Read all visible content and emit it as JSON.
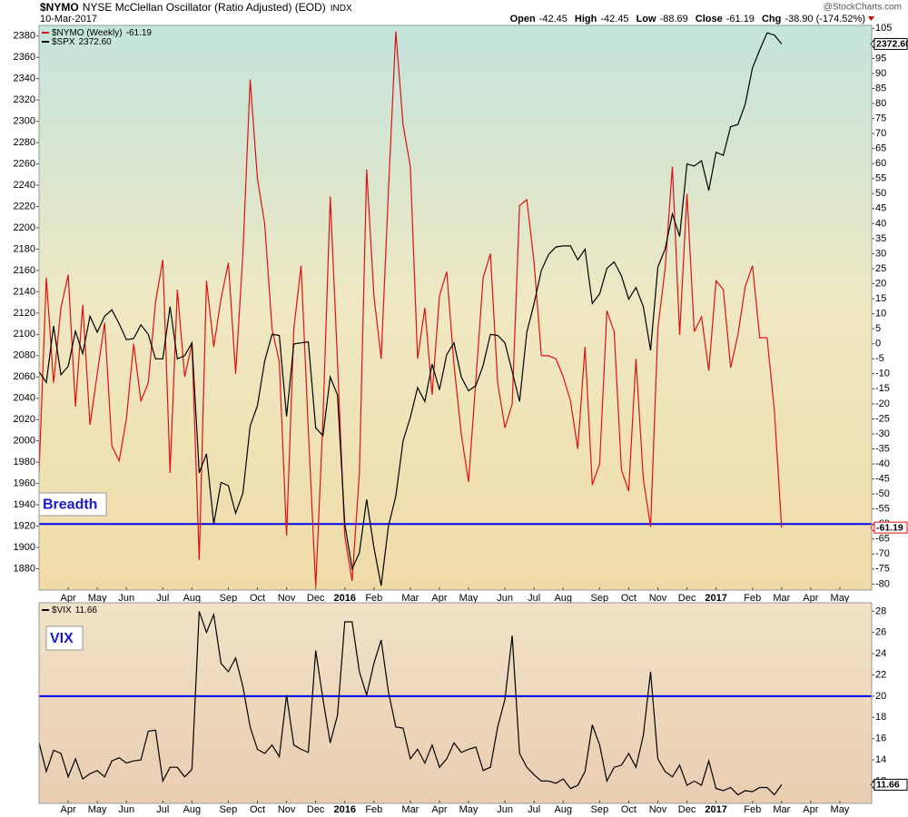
{
  "header": {
    "symbol": "$NYMO",
    "name": "NYSE McClellan Oscillator (Ratio Adjusted) (EOD)",
    "exchange": "INDX",
    "date": "10-Mar-2017",
    "source": "@StockCharts.com",
    "quote": [
      {
        "label": "Open",
        "value": "-42.45"
      },
      {
        "label": "High",
        "value": "-42.45"
      },
      {
        "label": "Low",
        "value": "-88.69"
      },
      {
        "label": "Close",
        "value": "-61.19"
      },
      {
        "label": "Chg",
        "value": "-38.90 (-174.52%)"
      }
    ]
  },
  "chart_data": [
    {
      "type": "line",
      "categories": [
        null,
        null,
        null,
        null,
        "Apr",
        null,
        null,
        null,
        "May",
        null,
        null,
        null,
        "Jun",
        null,
        null,
        null,
        null,
        "Jul",
        null,
        null,
        null,
        "Aug",
        null,
        null,
        null,
        null,
        "Sep",
        null,
        null,
        null,
        "Oct",
        null,
        null,
        null,
        "Nov",
        null,
        null,
        null,
        "Dec",
        null,
        null,
        null,
        "2016",
        null,
        null,
        null,
        "Feb",
        null,
        null,
        null,
        null,
        "Mar",
        null,
        null,
        null,
        "Apr",
        null,
        null,
        null,
        "May",
        null,
        null,
        null,
        null,
        "Jun",
        null,
        null,
        null,
        "Jul",
        null,
        null,
        null,
        "Aug",
        null,
        null,
        null,
        null,
        "Sep",
        null,
        null,
        null,
        "Oct",
        null,
        null,
        null,
        "Nov",
        null,
        null,
        null,
        "Dec",
        null,
        null,
        null,
        "2017",
        null,
        null,
        null,
        null,
        "Feb",
        null,
        null,
        null,
        "Mar",
        null,
        null,
        null,
        "Apr",
        null,
        null,
        null,
        "May",
        null,
        null,
        null,
        null
      ],
      "ylim": [
        1860,
        2390
      ],
      "yticks": [
        1880,
        1900,
        1920,
        1940,
        1960,
        1980,
        2000,
        2020,
        2040,
        2060,
        2080,
        2100,
        2120,
        2140,
        2160,
        2180,
        2200,
        2220,
        2240,
        2260,
        2280,
        2300,
        2320,
        2340,
        2360,
        2380
      ],
      "y2lim": [
        -82,
        106
      ],
      "y2ticks": [
        -80,
        -75,
        -70,
        -65,
        -60,
        -55,
        -50,
        -45,
        -40,
        -35,
        -30,
        -25,
        -20,
        -15,
        -10,
        -5,
        0,
        5,
        10,
        15,
        20,
        25,
        30,
        35,
        40,
        45,
        50,
        55,
        60,
        65,
        70,
        75,
        80,
        85,
        90,
        95,
        100,
        105
      ],
      "yaxis_position": "left",
      "annotation": "Breadth",
      "reference_lines": [
        {
          "value": -60,
          "axis": "y2",
          "color": "#0000ee"
        }
      ],
      "series": [
        {
          "name": "$NYMO (Weekly)",
          "color": "#dd1111",
          "axis": "y2",
          "values": [
            -43,
            22,
            -13,
            12,
            23,
            -21,
            13,
            -27,
            -10,
            7,
            -34,
            -39,
            -25,
            0,
            -19,
            -13,
            14,
            28,
            -43,
            18,
            -11,
            0,
            -72,
            21,
            -1,
            15,
            27,
            -10,
            30,
            88,
            55,
            40,
            5,
            -6,
            -64,
            5,
            26,
            -29,
            -81,
            -25,
            49,
            -6,
            -64,
            -79,
            -43,
            58,
            16,
            -5,
            51,
            104,
            73,
            59,
            -5,
            12,
            -17,
            16,
            24,
            -7,
            -30,
            -46,
            -12,
            22,
            30,
            -13,
            -28,
            -20,
            46,
            48,
            27,
            -4,
            -4,
            -5,
            -11,
            -19,
            -35,
            -1,
            -47,
            -40,
            11,
            4,
            -42,
            -49,
            -5,
            -45,
            -61,
            5,
            25,
            59,
            3,
            50,
            4,
            9,
            -9,
            21,
            18,
            -8,
            3,
            19,
            26,
            2,
            2,
            -22,
            -61.19,
            null,
            null,
            null,
            null,
            null,
            null,
            null,
            null,
            null,
            null,
            null,
            null
          ]
        },
        {
          "name": "$SPX",
          "color": "#000000",
          "axis": "y",
          "values": [
            2065,
            2055,
            2108,
            2062,
            2070,
            2103,
            2082,
            2117,
            2102,
            2117,
            2123,
            2110,
            2095,
            2096,
            2109,
            2100,
            2077,
            2077,
            2126,
            2077,
            2080,
            2092,
            1970,
            1988,
            1922,
            1961,
            1958,
            1932,
            1951,
            2014,
            2033,
            2075,
            2100,
            2099,
            2023,
            2091,
            2092,
            2093,
            2012,
            2005,
            2060,
            2043,
            1922,
            1880,
            1895,
            1945,
            1900,
            1864,
            1920,
            1948,
            2000,
            2022,
            2050,
            2037,
            2072,
            2048,
            2081,
            2092,
            2060,
            2047,
            2052,
            2071,
            2100,
            2099,
            2092,
            2065,
            2037,
            2102,
            2129,
            2160,
            2175,
            2182,
            2183,
            2183,
            2170,
            2180,
            2129,
            2138,
            2162,
            2168,
            2155,
            2133,
            2144,
            2126,
            2085,
            2163,
            2180,
            2213,
            2192,
            2260,
            2258,
            2263,
            2235,
            2271,
            2268,
            2295,
            2297,
            2316,
            2350,
            2367,
            2383,
            2381,
            2372.6,
            null,
            null,
            null,
            null,
            null,
            null,
            null,
            null,
            null,
            null,
            null,
            null
          ],
          "value_labels": [
            null,
            null,
            null,
            null,
            null,
            null,
            null,
            null,
            null,
            null,
            null,
            null,
            null,
            null,
            null,
            null,
            null,
            null,
            null,
            null,
            null,
            null,
            null,
            null,
            null,
            null,
            null,
            null,
            null,
            null,
            null,
            null,
            null,
            null,
            null,
            null,
            null,
            null,
            null,
            null,
            null,
            null,
            null,
            null,
            null,
            null,
            null,
            null,
            null,
            null,
            null,
            null,
            null,
            null,
            null,
            null,
            null,
            null,
            null,
            null,
            null,
            null,
            null,
            null,
            null,
            null,
            null,
            null,
            null,
            null,
            null,
            null,
            null,
            null,
            null,
            null,
            null,
            null,
            null,
            null,
            null,
            null,
            null,
            null,
            null,
            null,
            null,
            null,
            null,
            null,
            null,
            null,
            null,
            null,
            null,
            null,
            null,
            null,
            null,
            null,
            null,
            null,
            "2372.60",
            null,
            null,
            null,
            null,
            null,
            null,
            null,
            null,
            null,
            null,
            null,
            null
          ]
        }
      ]
    },
    {
      "type": "line",
      "categories": [
        null,
        null,
        null,
        null,
        "Apr",
        null,
        null,
        null,
        "May",
        null,
        null,
        null,
        "Jun",
        null,
        null,
        null,
        null,
        "Jul",
        null,
        null,
        null,
        "Aug",
        null,
        null,
        null,
        null,
        "Sep",
        null,
        null,
        null,
        "Oct",
        null,
        null,
        null,
        "Nov",
        null,
        null,
        null,
        "Dec",
        null,
        null,
        null,
        "2016",
        null,
        null,
        null,
        "Feb",
        null,
        null,
        null,
        null,
        "Mar",
        null,
        null,
        null,
        "Apr",
        null,
        null,
        null,
        "May",
        null,
        null,
        null,
        null,
        "Jun",
        null,
        null,
        null,
        "Jul",
        null,
        null,
        null,
        "Aug",
        null,
        null,
        null,
        null,
        "Sep",
        null,
        null,
        null,
        "Oct",
        null,
        null,
        null,
        "Nov",
        null,
        null,
        null,
        "Dec",
        null,
        null,
        null,
        "2017",
        null,
        null,
        null,
        null,
        "Feb",
        null,
        null,
        null,
        "Mar",
        null,
        null,
        null,
        "Apr",
        null,
        null,
        null,
        "May",
        null,
        null,
        null,
        null
      ],
      "ylim": [
        9.9,
        28.8
      ],
      "yticks": [
        12,
        14,
        16,
        18,
        20,
        22,
        24,
        26,
        28
      ],
      "yaxis_position": "right",
      "annotation": "VIX",
      "reference_lines": [
        {
          "value": 20,
          "axis": "y",
          "color": "#0000ee"
        }
      ],
      "series": [
        {
          "name": "$VIX",
          "color": "#000000",
          "axis": "y",
          "values": [
            15.6,
            12.9,
            14.9,
            14.6,
            12.4,
            14.1,
            12.2,
            12.7,
            13.0,
            12.4,
            13.9,
            14.2,
            13.7,
            13.9,
            14.0,
            16.7,
            16.8,
            12.0,
            13.3,
            13.3,
            12.4,
            13.1,
            28,
            26,
            27.7,
            23.1,
            22.3,
            23.6,
            20.9,
            17.1,
            15.0,
            14.6,
            15.4,
            14.3,
            20.1,
            15.4,
            15.0,
            14.7,
            24.3,
            19.7,
            15.6,
            18.2,
            27,
            27,
            22.3,
            20.1,
            23.1,
            25.3,
            20.4,
            17.1,
            17.0,
            14.1,
            15.0,
            13.7,
            15.4,
            13.3,
            14.1,
            15.6,
            14.7,
            15.0,
            15.2,
            13.0,
            13.3,
            17.1,
            19.7,
            25.7,
            14.6,
            13.3,
            12.6,
            12.0,
            12.0,
            11.8,
            12.2,
            11.3,
            11.6,
            12.9,
            17.3,
            15.4,
            12.0,
            13.3,
            13.5,
            14.6,
            13.3,
            16.3,
            22.3,
            14.1,
            12.9,
            12.4,
            13.5,
            11.6,
            12.0,
            11.6,
            13.9,
            11.3,
            11.1,
            11.4,
            10.7,
            11.1,
            11.0,
            11.4,
            11.4,
            10.7,
            11.66,
            null,
            null,
            null,
            null,
            null,
            null,
            null,
            null,
            null,
            null,
            null,
            null
          ]
        }
      ]
    }
  ]
}
